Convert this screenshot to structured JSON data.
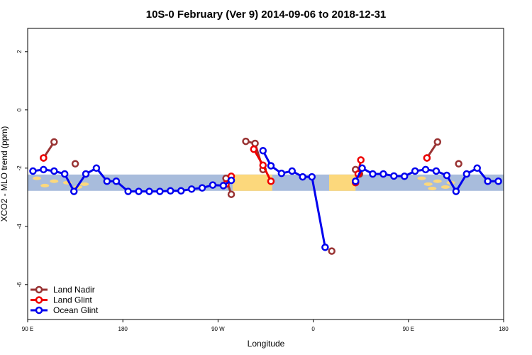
{
  "chart_data": {
    "type": "line",
    "title": "10S-0 February (Ver 9)   2014-09-06 to 2018-12-31",
    "xlabel": "Longitude",
    "ylabel": "XCO2 - MLO trend (ppm)",
    "xlim": [
      90,
      450
    ],
    "ylim": [
      -7.2,
      2.8
    ],
    "x_ticks": [
      {
        "value": 90,
        "label": "90 E"
      },
      {
        "value": 162,
        "label": "180"
      },
      {
        "value": 234,
        "label": "90 W"
      },
      {
        "value": 306,
        "label": "0"
      },
      {
        "value": 378,
        "label": "90 E"
      },
      {
        "value": 450,
        "label": "180"
      }
    ],
    "y_ticks": [
      {
        "value": 2,
        "label": "2"
      },
      {
        "value": 0,
        "label": "0"
      },
      {
        "value": -2,
        "label": "-2"
      },
      {
        "value": -4,
        "label": "-4"
      },
      {
        "value": -6,
        "label": "-6"
      }
    ],
    "legend_position": "bottom-left",
    "map_strip": {
      "y_top": -2.22,
      "y_bottom": -2.78,
      "ocean_color": "#a8bcdc",
      "land_color": "#fcd87c"
    },
    "series": [
      {
        "name": "Land Nadir",
        "color": "#993333",
        "segments": [
          [
            [
              102,
              -1.65
            ],
            [
              110,
              -1.1
            ]
          ],
          [
            [
              126,
              -1.85
            ]
          ],
          [
            [
              240,
              -2.35
            ],
            [
              244,
              -2.9
            ]
          ],
          [
            [
              255,
              -1.08
            ],
            [
              262,
              -1.15
            ],
            [
              268,
              -2.05
            ]
          ],
          [
            [
              320,
              -4.85
            ]
          ],
          [
            [
              338,
              -2.05
            ],
            [
              341,
              -2.2
            ]
          ],
          [
            [
              392,
              -1.65
            ],
            [
              400,
              -1.1
            ]
          ],
          [
            [
              416,
              -1.85
            ]
          ]
        ]
      },
      {
        "name": "Land Glint",
        "color": "#ee0000",
        "segments": [
          [
            [
              102,
              -1.65
            ]
          ],
          [
            [
              240,
              -2.55
            ],
            [
              244,
              -2.28
            ]
          ],
          [
            [
              261,
              -1.35
            ],
            [
              268,
              -1.9
            ],
            [
              274,
              -2.45
            ]
          ],
          [
            [
              338,
              -2.5
            ],
            [
              340,
              -2.2
            ],
            [
              342,
              -1.72
            ]
          ],
          [
            [
              392,
              -1.65
            ]
          ]
        ]
      },
      {
        "name": "Ocean Glint",
        "color": "#0000ee",
        "segments": [
          [
            [
              94,
              -2.1
            ],
            [
              102,
              -2.05
            ],
            [
              110,
              -2.1
            ],
            [
              118,
              -2.2
            ],
            [
              125,
              -2.8
            ],
            [
              134,
              -2.2
            ],
            [
              142,
              -2.0
            ],
            [
              150,
              -2.45
            ],
            [
              157,
              -2.45
            ],
            [
              166,
              -2.8
            ],
            [
              174,
              -2.8
            ],
            [
              182,
              -2.8
            ],
            [
              190,
              -2.8
            ],
            [
              198,
              -2.78
            ],
            [
              206,
              -2.78
            ],
            [
              214,
              -2.72
            ],
            [
              222,
              -2.68
            ],
            [
              230,
              -2.58
            ],
            [
              238,
              -2.6
            ],
            [
              244,
              -2.42
            ]
          ],
          [
            [
              268,
              -1.4
            ],
            [
              274,
              -1.92
            ],
            [
              282,
              -2.18
            ],
            [
              290,
              -2.1
            ],
            [
              298,
              -2.3
            ],
            [
              305,
              -2.3
            ],
            [
              315,
              -4.72
            ]
          ],
          [
            [
              338,
              -2.45
            ],
            [
              343,
              -2.0
            ],
            [
              351,
              -2.2
            ],
            [
              359,
              -2.2
            ],
            [
              367,
              -2.27
            ],
            [
              375,
              -2.28
            ],
            [
              383,
              -2.1
            ],
            [
              391,
              -2.05
            ],
            [
              399,
              -2.1
            ],
            [
              407,
              -2.25
            ],
            [
              414,
              -2.8
            ],
            [
              422,
              -2.2
            ],
            [
              430,
              -2.0
            ],
            [
              438,
              -2.45
            ],
            [
              446,
              -2.45
            ]
          ]
        ]
      }
    ]
  }
}
